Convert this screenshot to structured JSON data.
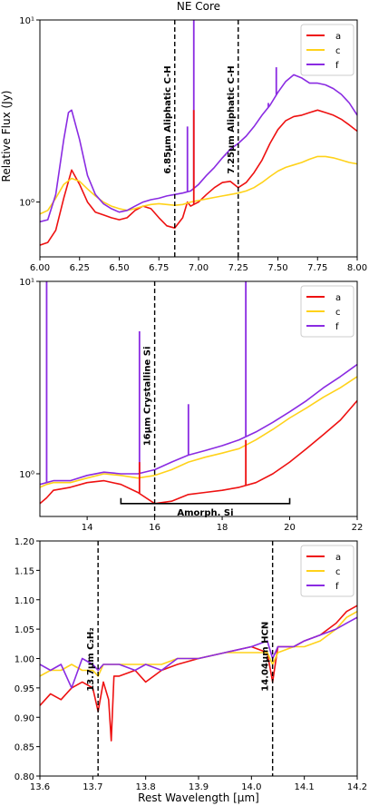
{
  "figure": {
    "title": "NE Core",
    "ylabel": "Relative Flux (Jy)",
    "xlabel": "Rest Wavelength [μm]"
  },
  "chart_data": [
    {
      "type": "line",
      "yscale": "log",
      "xlim": [
        6.0,
        8.0
      ],
      "ylim": [
        0.5,
        10
      ],
      "x_ticks": [
        6.0,
        6.25,
        6.5,
        6.75,
        7.0,
        7.25,
        7.5,
        7.75,
        8.0
      ],
      "x_tick_labels": [
        "6.00",
        "6.25",
        "6.50",
        "6.75",
        "7.00",
        "7.25",
        "7.50",
        "7.75",
        "8.00"
      ],
      "y_ticks": [
        1,
        10
      ],
      "y_tick_labels": [
        "10⁰",
        "10¹"
      ],
      "legend": {
        "position": "top-right",
        "labels": [
          "a",
          "c",
          "f"
        ]
      },
      "grid": false,
      "vlines": [
        {
          "x": 6.0,
          "style": "dashed-gray",
          "label": ""
        },
        {
          "x": 6.85,
          "style": "dashed",
          "label": "6.85μm Aliphatic C-H"
        },
        {
          "x": 7.25,
          "style": "dashed",
          "label": "7.25μm Aliphatic C-H"
        }
      ],
      "series": [
        {
          "name": "a",
          "color": "#ee1111",
          "x": [
            6.0,
            6.05,
            6.1,
            6.15,
            6.2,
            6.25,
            6.3,
            6.35,
            6.4,
            6.45,
            6.5,
            6.55,
            6.6,
            6.65,
            6.7,
            6.75,
            6.8,
            6.85,
            6.9,
            6.93,
            6.95,
            7.0,
            7.05,
            7.1,
            7.15,
            7.2,
            7.25,
            7.3,
            7.35,
            7.4,
            7.45,
            7.5,
            7.55,
            7.6,
            7.65,
            7.7,
            7.75,
            7.8,
            7.85,
            7.9,
            7.95,
            8.0
          ],
          "y": [
            0.58,
            0.6,
            0.7,
            1.05,
            1.5,
            1.25,
            1.0,
            0.88,
            0.85,
            0.82,
            0.8,
            0.82,
            0.9,
            0.95,
            0.92,
            0.82,
            0.74,
            0.72,
            0.82,
            1.0,
            0.95,
            1.0,
            1.1,
            1.2,
            1.28,
            1.3,
            1.2,
            1.28,
            1.45,
            1.7,
            2.1,
            2.5,
            2.8,
            2.95,
            3.0,
            3.1,
            3.2,
            3.1,
            3.0,
            2.85,
            2.65,
            2.45
          ]
        },
        {
          "name": "c",
          "color": "#ffd21a",
          "x": [
            6.0,
            6.05,
            6.1,
            6.15,
            6.2,
            6.25,
            6.3,
            6.35,
            6.4,
            6.45,
            6.5,
            6.55,
            6.6,
            6.65,
            6.7,
            6.75,
            6.8,
            6.85,
            6.9,
            6.95,
            7.0,
            7.05,
            7.1,
            7.15,
            7.2,
            7.25,
            7.3,
            7.35,
            7.4,
            7.45,
            7.5,
            7.55,
            7.6,
            7.65,
            7.7,
            7.75,
            7.8,
            7.85,
            7.9,
            7.95,
            8.0
          ],
          "y": [
            0.86,
            0.9,
            1.05,
            1.25,
            1.35,
            1.3,
            1.18,
            1.08,
            1.0,
            0.95,
            0.92,
            0.9,
            0.92,
            0.95,
            0.97,
            0.98,
            0.97,
            0.96,
            0.97,
            1.0,
            1.02,
            1.04,
            1.06,
            1.08,
            1.1,
            1.12,
            1.15,
            1.2,
            1.28,
            1.38,
            1.48,
            1.55,
            1.6,
            1.65,
            1.72,
            1.78,
            1.78,
            1.75,
            1.7,
            1.65,
            1.62
          ]
        },
        {
          "name": "f",
          "color": "#8a2be2",
          "x": [
            6.0,
            6.05,
            6.1,
            6.15,
            6.18,
            6.2,
            6.25,
            6.3,
            6.35,
            6.4,
            6.45,
            6.5,
            6.55,
            6.6,
            6.65,
            6.7,
            6.75,
            6.8,
            6.85,
            6.9,
            6.95,
            7.0,
            7.05,
            7.1,
            7.15,
            7.2,
            7.25,
            7.3,
            7.35,
            7.4,
            7.45,
            7.5,
            7.55,
            7.6,
            7.65,
            7.7,
            7.75,
            7.8,
            7.85,
            7.9,
            7.95,
            8.0
          ],
          "y": [
            0.78,
            0.8,
            1.1,
            2.2,
            3.1,
            3.2,
            2.2,
            1.4,
            1.1,
            0.98,
            0.92,
            0.88,
            0.9,
            0.95,
            1.0,
            1.03,
            1.05,
            1.08,
            1.1,
            1.12,
            1.15,
            1.25,
            1.4,
            1.55,
            1.75,
            1.95,
            2.1,
            2.3,
            2.6,
            3.0,
            3.4,
            4.0,
            4.6,
            5.0,
            4.8,
            4.5,
            4.5,
            4.4,
            4.2,
            3.9,
            3.5,
            3.0
          ]
        }
      ],
      "spikes": [
        {
          "series": "f",
          "x": 6.93,
          "y": 2.6
        },
        {
          "series": "f",
          "x": 6.97,
          "y": 10.0
        },
        {
          "series": "f",
          "x": 7.17,
          "y": 1.8
        },
        {
          "series": "f",
          "x": 7.44,
          "y": 3.5
        },
        {
          "series": "f",
          "x": 7.49,
          "y": 5.5
        },
        {
          "series": "a",
          "x": 6.97,
          "y": 3.2
        }
      ]
    },
    {
      "type": "line",
      "yscale": "log",
      "xlim": [
        12.6,
        22.0
      ],
      "ylim": [
        0.6,
        10
      ],
      "x_ticks": [
        14,
        16,
        18,
        20,
        22
      ],
      "x_tick_labels": [
        "14",
        "16",
        "18",
        "20",
        "22"
      ],
      "y_ticks": [
        1,
        10
      ],
      "y_tick_labels": [
        "10⁰",
        "10¹"
      ],
      "legend": {
        "position": "top-right",
        "labels": [
          "a",
          "c",
          "f"
        ]
      },
      "grid": false,
      "vlines": [
        {
          "x": 16.0,
          "style": "dashed",
          "label": "16μm Crystalline Si"
        }
      ],
      "bracket": {
        "x1": 15.0,
        "x2": 20.0,
        "y": 0.7,
        "label": "Amorph. Si"
      },
      "series": [
        {
          "name": "a",
          "color": "#ee1111",
          "x": [
            12.6,
            12.8,
            13.0,
            13.5,
            14.0,
            14.5,
            15.0,
            15.5,
            16.0,
            16.5,
            17.0,
            17.5,
            18.0,
            18.5,
            19.0,
            19.5,
            20.0,
            20.5,
            21.0,
            21.5,
            22.0
          ],
          "y": [
            0.7,
            0.75,
            0.82,
            0.85,
            0.9,
            0.92,
            0.88,
            0.8,
            0.7,
            0.72,
            0.78,
            0.8,
            0.82,
            0.85,
            0.9,
            1.0,
            1.15,
            1.35,
            1.6,
            1.9,
            2.4
          ]
        },
        {
          "name": "c",
          "color": "#ffd21a",
          "x": [
            12.6,
            12.8,
            13.0,
            13.5,
            14.0,
            14.5,
            15.0,
            15.5,
            16.0,
            16.5,
            17.0,
            17.5,
            18.0,
            18.5,
            19.0,
            19.5,
            20.0,
            20.5,
            21.0,
            21.5,
            22.0
          ],
          "y": [
            0.85,
            0.88,
            0.9,
            0.9,
            0.95,
            1.0,
            0.98,
            0.95,
            0.98,
            1.05,
            1.15,
            1.22,
            1.28,
            1.35,
            1.5,
            1.7,
            1.95,
            2.2,
            2.5,
            2.8,
            3.2
          ]
        },
        {
          "name": "f",
          "color": "#8a2be2",
          "x": [
            12.6,
            12.8,
            13.0,
            13.5,
            14.0,
            14.5,
            15.0,
            15.5,
            16.0,
            16.5,
            17.0,
            17.5,
            18.0,
            18.5,
            19.0,
            19.5,
            20.0,
            20.5,
            21.0,
            21.5,
            22.0
          ],
          "y": [
            0.88,
            0.9,
            0.92,
            0.92,
            0.98,
            1.02,
            1.0,
            1.0,
            1.05,
            1.15,
            1.25,
            1.32,
            1.4,
            1.5,
            1.65,
            1.85,
            2.1,
            2.4,
            2.8,
            3.2,
            3.7
          ]
        }
      ],
      "spikes": [
        {
          "series": "f",
          "x": 12.8,
          "y": 10.0
        },
        {
          "series": "f",
          "x": 15.55,
          "y": 5.5
        },
        {
          "series": "f",
          "x": 17.0,
          "y": 2.3
        },
        {
          "series": "f",
          "x": 18.7,
          "y": 10.0
        },
        {
          "series": "a",
          "x": 15.55,
          "y": 1.15
        },
        {
          "series": "a",
          "x": 18.7,
          "y": 1.5
        }
      ]
    },
    {
      "type": "line",
      "yscale": "linear",
      "xlim": [
        13.6,
        14.2
      ],
      "ylim": [
        0.8,
        1.2
      ],
      "x_ticks": [
        13.6,
        13.7,
        13.8,
        13.9,
        14.0,
        14.1,
        14.2
      ],
      "x_tick_labels": [
        "13.6",
        "13.7",
        "13.8",
        "13.9",
        "14.0",
        "14.1",
        "14.2"
      ],
      "y_ticks": [
        0.8,
        0.85,
        0.9,
        0.95,
        1.0,
        1.05,
        1.1,
        1.15,
        1.2
      ],
      "y_tick_labels": [
        "0.80",
        "0.85",
        "0.90",
        "0.95",
        "1.00",
        "1.05",
        "1.10",
        "1.15",
        "1.20"
      ],
      "legend": {
        "position": "top-right",
        "labels": [
          "a",
          "c",
          "f"
        ]
      },
      "grid": false,
      "vlines": [
        {
          "x": 13.71,
          "style": "dashed",
          "label": "13.7μm C₂H₂"
        },
        {
          "x": 14.04,
          "style": "dashed",
          "label": "14.04μm HCN"
        }
      ],
      "series": [
        {
          "name": "a",
          "color": "#ee1111",
          "x": [
            13.6,
            13.62,
            13.64,
            13.66,
            13.68,
            13.7,
            13.71,
            13.72,
            13.73,
            13.735,
            13.74,
            13.75,
            13.78,
            13.8,
            13.83,
            13.86,
            13.9,
            13.95,
            14.0,
            14.03,
            14.04,
            14.05,
            14.08,
            14.1,
            14.13,
            14.16,
            14.18,
            14.2
          ],
          "y": [
            0.92,
            0.94,
            0.93,
            0.95,
            0.96,
            0.95,
            0.91,
            0.96,
            0.93,
            0.86,
            0.97,
            0.97,
            0.98,
            0.96,
            0.98,
            0.99,
            1.0,
            1.01,
            1.02,
            1.01,
            0.96,
            1.02,
            1.02,
            1.03,
            1.04,
            1.06,
            1.08,
            1.09
          ]
        },
        {
          "name": "c",
          "color": "#ffd21a",
          "x": [
            13.6,
            13.62,
            13.64,
            13.66,
            13.68,
            13.7,
            13.71,
            13.72,
            13.75,
            13.78,
            13.8,
            13.83,
            13.86,
            13.9,
            13.95,
            14.0,
            14.03,
            14.04,
            14.05,
            14.08,
            14.1,
            14.13,
            14.16,
            14.18,
            14.2
          ],
          "y": [
            0.97,
            0.98,
            0.98,
            0.99,
            0.98,
            0.98,
            0.97,
            0.99,
            0.99,
            0.99,
            0.99,
            0.99,
            1.0,
            1.0,
            1.01,
            1.01,
            1.01,
            0.99,
            1.01,
            1.02,
            1.02,
            1.03,
            1.05,
            1.07,
            1.08
          ]
        },
        {
          "name": "f",
          "color": "#8a2be2",
          "x": [
            13.6,
            13.62,
            13.64,
            13.66,
            13.68,
            13.7,
            13.71,
            13.72,
            13.75,
            13.78,
            13.8,
            13.83,
            13.86,
            13.9,
            13.95,
            14.0,
            14.03,
            14.04,
            14.05,
            14.08,
            14.1,
            14.13,
            14.16,
            14.18,
            14.2
          ],
          "y": [
            0.99,
            0.98,
            0.99,
            0.95,
            1.0,
            0.99,
            0.98,
            0.99,
            0.99,
            0.98,
            0.99,
            0.98,
            1.0,
            1.0,
            1.01,
            1.02,
            1.03,
            1.0,
            1.02,
            1.02,
            1.03,
            1.04,
            1.05,
            1.06,
            1.07
          ]
        }
      ]
    }
  ]
}
